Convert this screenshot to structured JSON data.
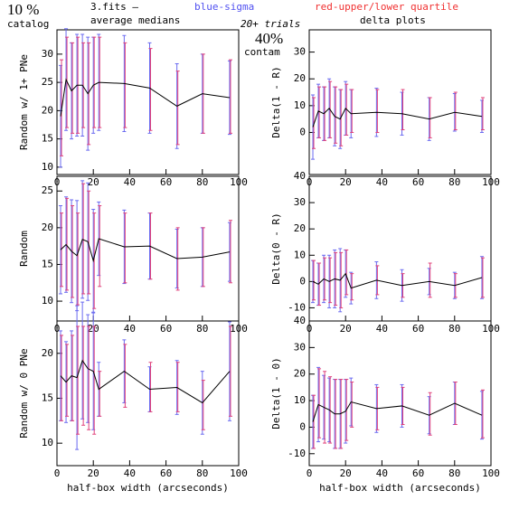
{
  "header": {
    "percent": "10 %",
    "catalog": "catalog",
    "file": "3.fits  –",
    "medians": "average medians",
    "blue_note": "blue-sigma",
    "red_note": "red-upper/lower quartile",
    "trials": "20+ trials",
    "contam_percent": "40%",
    "contam": "contam",
    "delta": "delta plots"
  },
  "chart_data": [
    {
      "type": "line",
      "ylabel": "Random w/ 1+ PNe",
      "x": [
        2,
        5,
        8,
        11,
        14,
        17,
        20,
        23,
        37,
        51,
        66,
        80,
        95
      ],
      "xlim": [
        0,
        100
      ],
      "xticks": [
        0,
        20,
        40,
        60,
        80,
        100
      ],
      "ylim": [
        8.7,
        34.3
      ],
      "yticks": [
        10,
        15,
        20,
        25,
        30
      ],
      "values": [
        19,
        25.5,
        23.5,
        24.5,
        24.5,
        23,
        24.5,
        25,
        24.8,
        24,
        20.8,
        23,
        22.3
      ],
      "sigma": [
        9,
        9,
        8.5,
        9,
        9,
        10,
        8.5,
        8.5,
        8.5,
        8,
        7.5,
        7,
        6.5
      ],
      "lower_quartile": [
        12,
        17,
        16,
        16,
        17,
        14,
        17,
        17,
        17,
        16.5,
        14,
        16,
        16
      ],
      "upper_quartile": [
        29,
        33,
        32,
        33,
        32,
        32,
        33,
        33,
        32,
        31,
        27,
        30,
        29
      ],
      "line_color": "#000000",
      "sigma_color": "#6a6af0",
      "quartile_color": "#e0407a"
    },
    {
      "type": "line",
      "ylabel": "Delta(1 - R)",
      "x": [
        2,
        5,
        8,
        11,
        14,
        17,
        20,
        23,
        37,
        51,
        66,
        80,
        95
      ],
      "xlim": [
        0,
        100
      ],
      "xticks": [
        0,
        20,
        40,
        60,
        80,
        100
      ],
      "ylim": [
        -15.7,
        38.3
      ],
      "yticks": [
        0,
        10,
        20,
        30
      ],
      "values": [
        2,
        8,
        7,
        9,
        6,
        5,
        9,
        7,
        7.5,
        7,
        5,
        7.5,
        6
      ],
      "sigma": [
        12,
        10,
        10,
        11,
        11,
        11,
        10,
        9,
        9,
        8,
        8,
        7,
        6
      ],
      "lower_quartile": [
        -6,
        -2,
        -3,
        -2,
        -4,
        -5,
        -1,
        0,
        0,
        1,
        -2,
        1,
        1
      ],
      "upper_quartile": [
        13,
        17,
        17,
        19,
        17,
        16,
        18,
        16,
        16,
        16,
        13,
        15,
        13
      ],
      "line_color": "#000000",
      "sigma_color": "#6a6af0",
      "quartile_color": "#e0407a"
    },
    {
      "type": "line",
      "ylabel": "Random",
      "x": [
        2,
        5,
        8,
        11,
        14,
        17,
        20,
        23,
        37,
        51,
        66,
        80,
        95
      ],
      "xlim": [
        0,
        100
      ],
      "xticks": [
        0,
        20,
        40,
        60,
        80,
        100
      ],
      "ylim": [
        7.3,
        27
      ],
      "yticks": [
        10,
        15,
        20,
        25
      ],
      "values": [
        17,
        17.7,
        16.8,
        16.2,
        18.4,
        18.1,
        15.5,
        18.5,
        17.4,
        17.5,
        15.8,
        16,
        16.7
      ],
      "sigma": [
        6,
        6.5,
        7,
        7.5,
        8,
        8,
        7,
        5,
        5,
        4.5,
        4,
        4,
        4
      ],
      "lower_quartile": [
        12,
        11.5,
        10.5,
        9.5,
        11,
        11,
        9,
        12,
        12.5,
        13,
        11.5,
        12,
        12.5
      ],
      "upper_quartile": [
        22,
        24,
        23,
        22,
        26,
        25,
        22,
        23,
        22,
        22,
        20,
        20,
        21
      ],
      "line_color": "#000000",
      "sigma_color": "#6a6af0",
      "quartile_color": "#e0407a"
    },
    {
      "type": "line",
      "ylabel": "Delta(0 - R)",
      "x": [
        2,
        5,
        8,
        11,
        14,
        17,
        20,
        23,
        37,
        51,
        66,
        80,
        95
      ],
      "xlim": [
        0,
        100
      ],
      "xticks": [
        0,
        20,
        40,
        60,
        80,
        100
      ],
      "ylim": [
        -15,
        40
      ],
      "yticks": [
        -10,
        0,
        10,
        20,
        30,
        40
      ],
      "values": [
        0,
        -1,
        1,
        0,
        1,
        0.5,
        3,
        -2.5,
        0.5,
        -1.5,
        0,
        -1.5,
        1.5
      ],
      "sigma": [
        8,
        8,
        9,
        10,
        11,
        12,
        9,
        6,
        7,
        6,
        5,
        5,
        8
      ],
      "lower_quartile": [
        -7,
        -9,
        -7,
        -8,
        -9,
        -10,
        -5,
        -7,
        -5,
        -6,
        -6,
        -6,
        -6
      ],
      "upper_quartile": [
        8,
        7,
        9,
        9,
        11,
        11,
        12,
        3,
        6,
        3,
        7,
        3,
        9
      ],
      "line_color": "#000000",
      "sigma_color": "#6a6af0",
      "quartile_color": "#e0407a"
    },
    {
      "type": "line",
      "ylabel": "Random w/ 0 PNe",
      "xlabel": "half-box width (arcseconds)",
      "x": [
        2,
        5,
        8,
        11,
        14,
        17,
        20,
        23,
        37,
        51,
        66,
        80,
        95
      ],
      "xlim": [
        0,
        100
      ],
      "xticks": [
        0,
        20,
        40,
        60,
        80,
        100
      ],
      "ylim": [
        7.5,
        23.6
      ],
      "yticks": [
        10,
        15,
        20
      ],
      "values": [
        17.5,
        16.8,
        17.5,
        17.3,
        19.2,
        18.3,
        18,
        16,
        18,
        16,
        16.2,
        14.5,
        18
      ],
      "sigma": [
        5,
        4.5,
        5,
        8,
        6.5,
        6,
        6.5,
        3,
        3.5,
        2.5,
        3,
        3.5,
        5.5
      ],
      "lower_quartile": [
        12.5,
        13,
        12.5,
        11,
        12,
        11.5,
        11,
        13,
        14,
        13.5,
        13.5,
        11.5,
        13
      ],
      "upper_quartile": [
        22,
        21,
        22,
        23,
        23,
        23,
        23,
        18,
        21,
        19,
        19,
        17,
        23
      ],
      "line_color": "#000000",
      "sigma_color": "#6a6af0",
      "quartile_color": "#e0407a"
    },
    {
      "type": "line",
      "ylabel": "Delta(1 - 0)",
      "xlabel": "half-box width (arcseconds)",
      "x": [
        2,
        5,
        8,
        11,
        14,
        17,
        20,
        23,
        37,
        51,
        66,
        80,
        95
      ],
      "xlim": [
        0,
        100
      ],
      "xticks": [
        0,
        20,
        40,
        60,
        80,
        100
      ],
      "ylim": [
        -14.5,
        40
      ],
      "yticks": [
        -10,
        0,
        10,
        20,
        30,
        40
      ],
      "values": [
        2,
        8.5,
        7.5,
        6.5,
        5,
        5,
        6,
        9.5,
        7,
        8,
        4.5,
        9,
        4.5
      ],
      "sigma": [
        10,
        14,
        12,
        12,
        13,
        13,
        12,
        9,
        9,
        8,
        7,
        8,
        9
      ],
      "lower_quartile": [
        -8,
        -4,
        -6,
        -6,
        -8,
        -8,
        -5,
        0,
        -1,
        1,
        -3,
        1,
        -4
      ],
      "upper_quartile": [
        12,
        22,
        21,
        19,
        18,
        18,
        18,
        17,
        15,
        15,
        13,
        17,
        14
      ],
      "line_color": "#000000",
      "sigma_color": "#6a6af0",
      "quartile_color": "#e0407a"
    }
  ]
}
